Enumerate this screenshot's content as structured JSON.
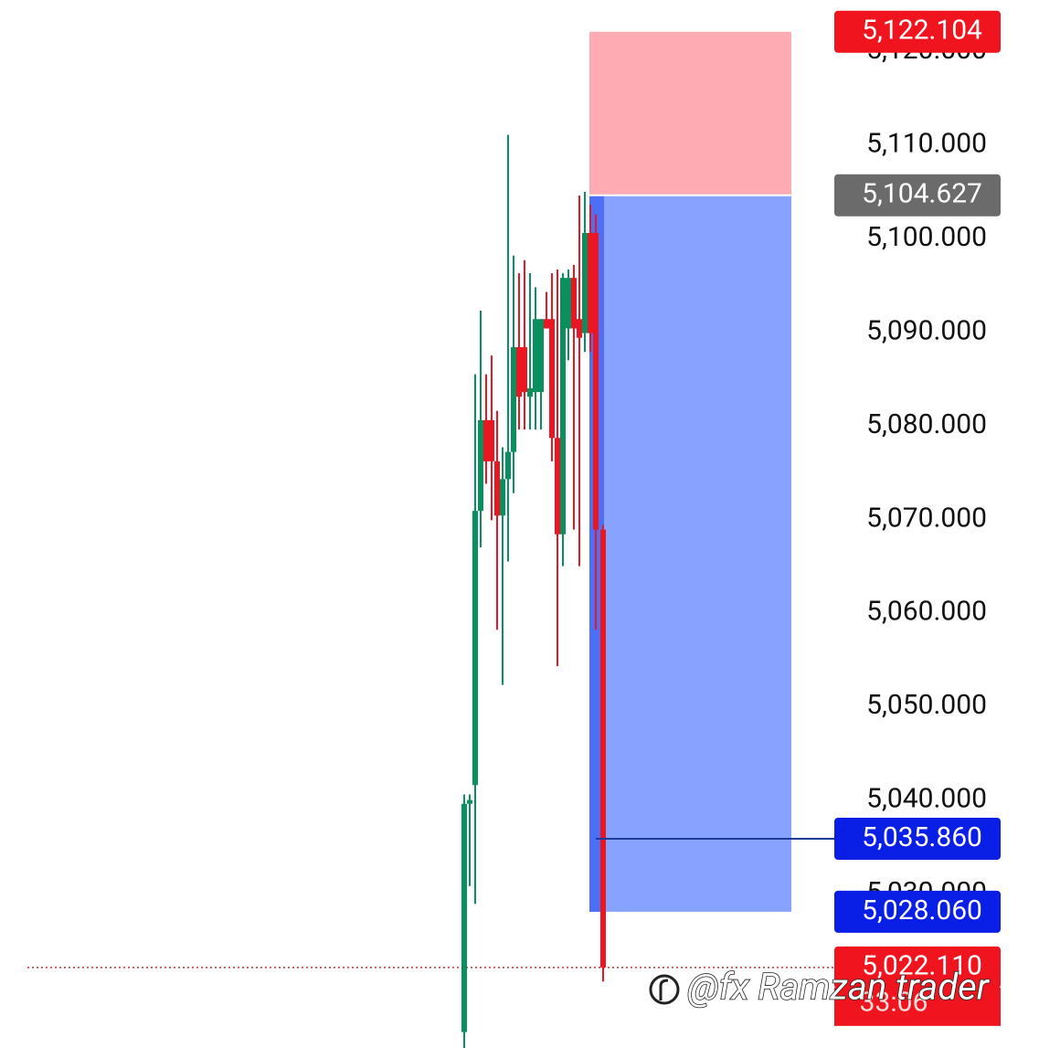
{
  "chart_data": {
    "type": "candlestick",
    "up_color": "#0a8f5f",
    "down_color": "#ec1522",
    "ylim": [
      5013.5,
      5125.5
    ],
    "yticks": [
      {
        "value": 5030,
        "label": "5,030.000"
      },
      {
        "value": 5040,
        "label": "5,040.000"
      },
      {
        "value": 5050,
        "label": "5,050.000"
      },
      {
        "value": 5060,
        "label": "5,060.000"
      },
      {
        "value": 5070,
        "label": "5,070.000"
      },
      {
        "value": 5080,
        "label": "5,080.000"
      },
      {
        "value": 5090,
        "label": "5,090.000"
      },
      {
        "value": 5100,
        "label": "5,100.000"
      },
      {
        "value": 5110,
        "label": "5,110.000"
      },
      {
        "value": 5120,
        "label": "5,120.000"
      }
    ],
    "open": [
      5015.2,
      5039.6,
      5041.6,
      5070.9,
      5080.6,
      5080.6,
      5076.2,
      5070.4,
      5074.3,
      5077.2,
      5088.4,
      5088.4,
      5083.1,
      5083.6,
      5083.6,
      5091.4,
      5091.4,
      5078.7,
      5068.4,
      5090.4,
      5095.8,
      5091.4,
      5089.9,
      5100.6,
      5100.6,
      5068.9
    ],
    "high": [
      5040.6,
      5040.6,
      5085.5,
      5092.3,
      5085.5,
      5087.5,
      5081.6,
      5077.7,
      5111.1,
      5098.2,
      5096.3,
      5097.7,
      5096.3,
      5094.8,
      5091.4,
      5094.3,
      5096.3,
      5096.7,
      5096.3,
      5096.7,
      5097.2,
      5104.6,
      5105.0,
      5103.6,
      5102.6,
      5069.4
    ],
    "low": [
      5013.5,
      5030.8,
      5028.9,
      5067.0,
      5073.8,
      5069.9,
      5058.2,
      5052.3,
      5065.5,
      5072.8,
      5079.6,
      5079.6,
      5079.6,
      5079.6,
      5079.6,
      5090.4,
      5076.2,
      5054.3,
      5065.0,
      5087.0,
      5068.9,
      5065.0,
      5087.9,
      5087.9,
      5058.2,
      5020.6
    ],
    "close": [
      5039.6,
      5040.0,
      5070.9,
      5080.6,
      5076.2,
      5076.2,
      5070.4,
      5074.3,
      5077.2,
      5088.4,
      5083.1,
      5083.6,
      5084.0,
      5091.4,
      5091.4,
      5090.4,
      5078.7,
      5068.4,
      5095.8,
      5095.8,
      5090.4,
      5089.4,
      5100.6,
      5089.9,
      5068.9,
      5022.11
    ],
    "stop_loss": {
      "value": 5122.104,
      "label": "5,122.104",
      "color": "#f0141e"
    },
    "entry": {
      "value": 5104.627,
      "label": "5,104.627",
      "color": "#6b6b6b"
    },
    "marker": {
      "value": 5035.86,
      "label": "5,035.860",
      "color": "#0a1fe6"
    },
    "take_profit": {
      "value": 5028.06,
      "label": "5,028.060",
      "color": "#0a1fe6"
    },
    "last_price": {
      "value": 5022.11,
      "label": "5,022.110",
      "color": "#f0141e"
    },
    "countdown": "33:06",
    "watermark": "@fx Ramzan trader"
  }
}
